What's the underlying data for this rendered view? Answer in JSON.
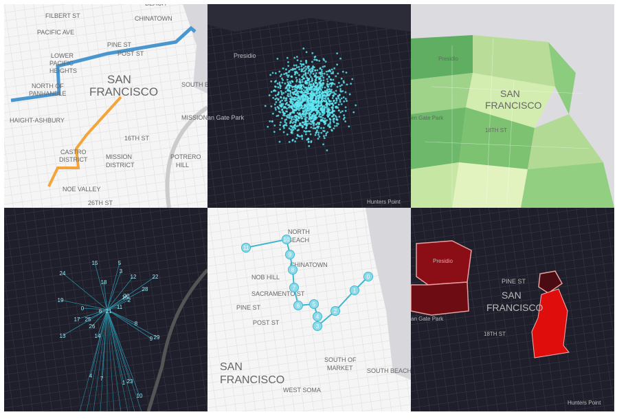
{
  "panels": [
    {
      "labels": [
        "BEACH",
        "FILBERT ST",
        "CHINATOWN",
        "PACIFIC AVE",
        "PINE ST",
        "POST ST",
        "LOWER",
        "PACIFIC",
        "HEIGHTS",
        "SAN",
        "FRANCISCO",
        "NORTH OF",
        "PANHANDLE",
        "SOUTH BE",
        "HAIGHT-ASHBURY",
        "MISSION",
        "16TH ST",
        "CASTRO",
        "DISTRICT",
        "MISSION",
        "DISTRICT",
        "POTRERO",
        "HILL",
        "NOE VALLEY",
        "26TH ST"
      ]
    },
    {
      "labels": [
        "Presidio",
        "an Gate Park",
        "Hunters Point"
      ]
    },
    {
      "labels": [
        "Presidio",
        "SAN",
        "FRANCISCO",
        "en Gate Park",
        "18TH ST"
      ]
    },
    {
      "nodes": [
        "15",
        "5",
        "3",
        "24",
        "12",
        "22",
        "18",
        "2",
        "20",
        "28",
        "16",
        "19",
        "0",
        "6",
        "21",
        "11",
        "17",
        "25",
        "8",
        "26",
        "13",
        "14",
        "29",
        "9",
        "4",
        "7",
        "1",
        "23",
        "10"
      ]
    },
    {
      "labels": [
        "NORTH",
        "BEACH",
        "CHINATOWN",
        "NOB HILL",
        "SACRAMENTO ST",
        "PINE ST",
        "POST ST",
        "SAN",
        "FRANCISCO",
        "SOUTH OF",
        "MARKET",
        "SOUTH BEACH",
        "WEST SOMA"
      ],
      "nodes": [
        "0",
        "1",
        "2",
        "3",
        "4",
        "5",
        "6",
        "7",
        "8",
        "9",
        "10",
        "11"
      ]
    },
    {
      "labels": [
        "Presidio",
        "PINE ST",
        "SAN",
        "FRANCISCO",
        "an Gate Park",
        "18TH ST",
        "Hunters Point"
      ]
    }
  ]
}
